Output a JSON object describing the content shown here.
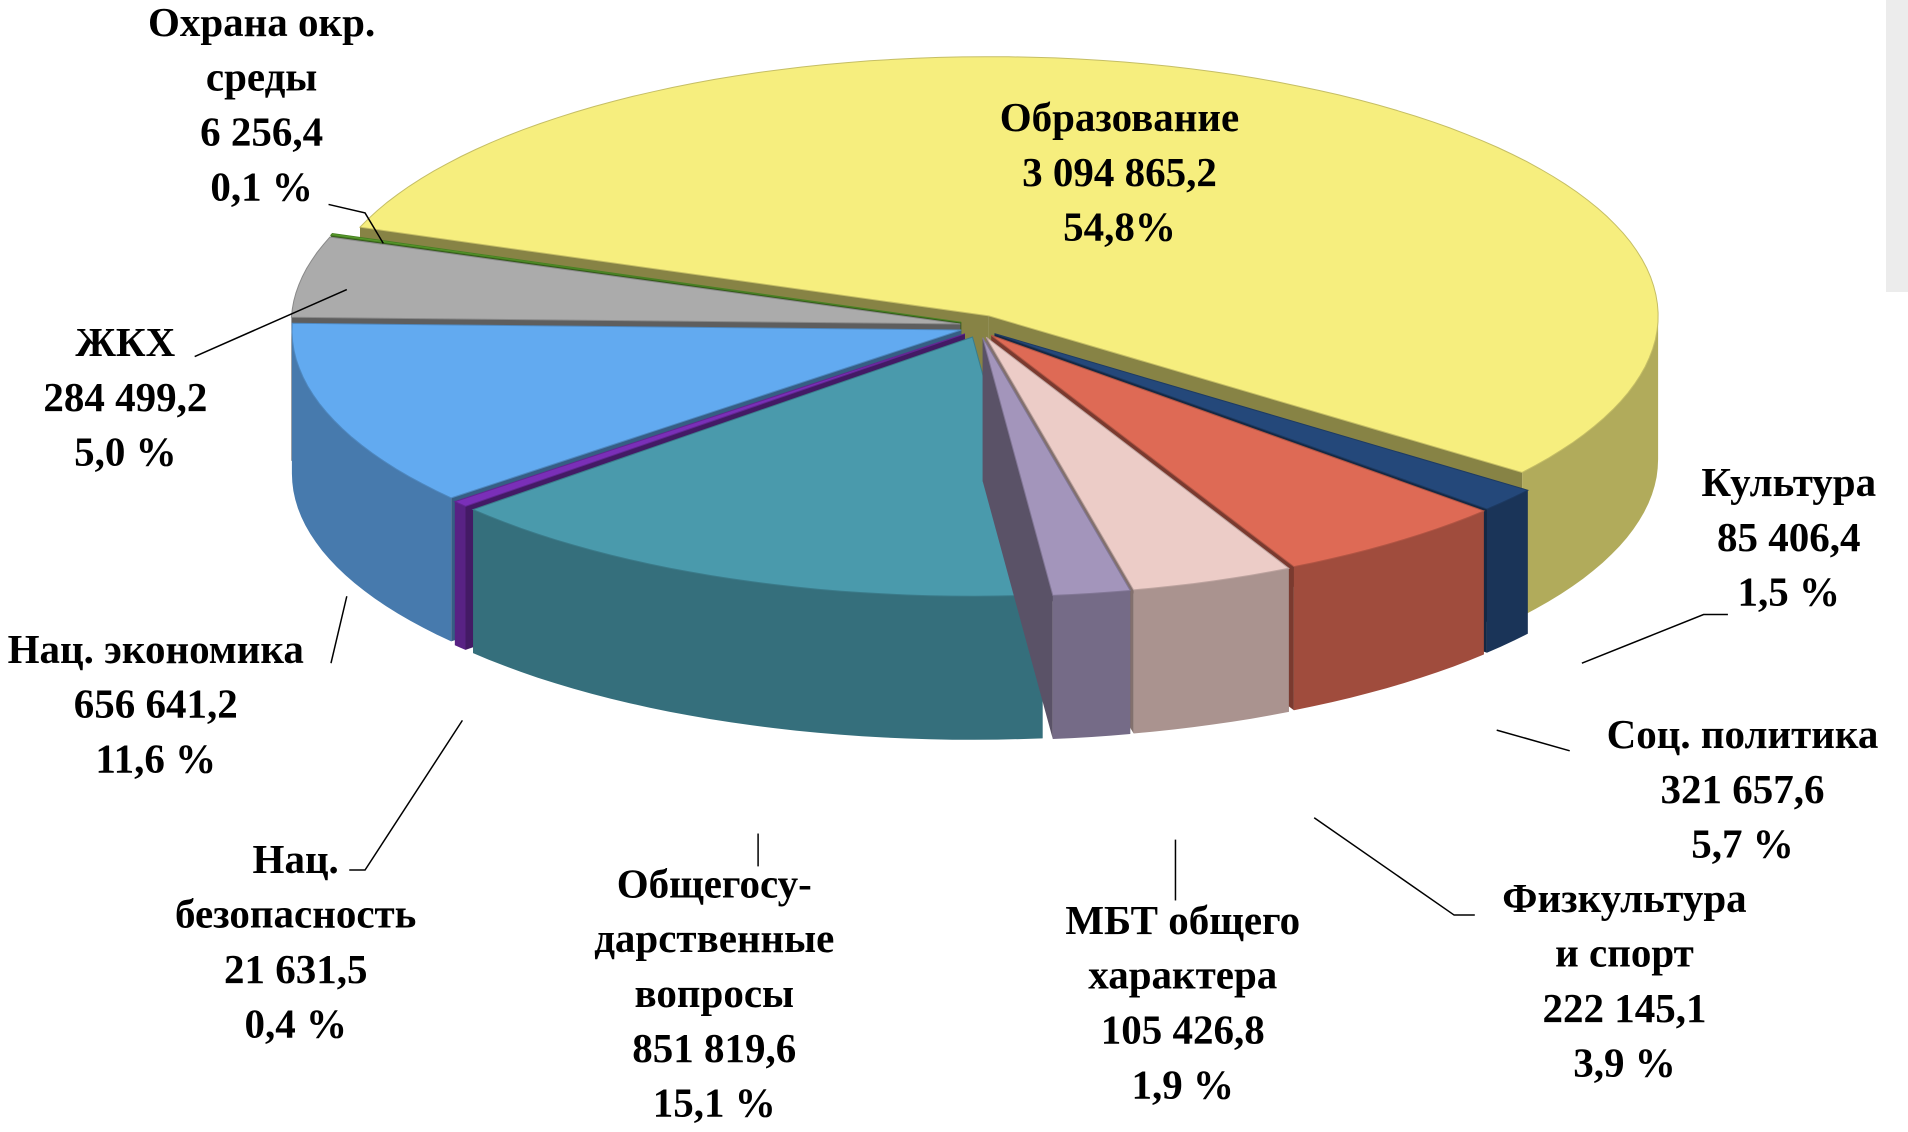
{
  "chart_data": {
    "type": "pie3d",
    "categories": [
      "Образование",
      "Культура",
      "Соц. политика",
      "Физкультура\nи спорт",
      "МБТ общего\nхарактера",
      "Общегосу-\nдарственные\nвопросы",
      "Нац.\nбезопасность",
      "Нац. экономика",
      "ЖКХ",
      "Охрана окр.\nсреды"
    ],
    "values": [
      3094865.2,
      85406.4,
      321657.6,
      222145.1,
      105426.8,
      851819.6,
      21631.5,
      656641.2,
      284499.2,
      6256.4
    ],
    "value_labels": [
      "3 094 865,2",
      "85 406,4",
      "321 657,6",
      "222 145,1",
      "105 426,8",
      "851 819,6",
      "21 631,5",
      "656 641,2",
      "284 499,2",
      "6 256,4"
    ],
    "percentages": [
      54.8,
      1.5,
      5.7,
      3.9,
      1.9,
      15.1,
      0.4,
      11.6,
      5.0,
      0.1
    ],
    "percentage_labels": [
      "54,8%",
      "1,5 %",
      "5,7 %",
      "3,9 %",
      "1,9 %",
      "15,1 %",
      "0,4 %",
      "11,6 %",
      "5,0 %",
      "0,1 %"
    ],
    "colors": [
      "#f6ee7e",
      "#24487a",
      "#de6a55",
      "#ecccc7",
      "#a395bb",
      "#4a9aac",
      "#7a2fb8",
      "#62aaf0",
      "#ababab",
      "#5aa02c"
    ]
  }
}
